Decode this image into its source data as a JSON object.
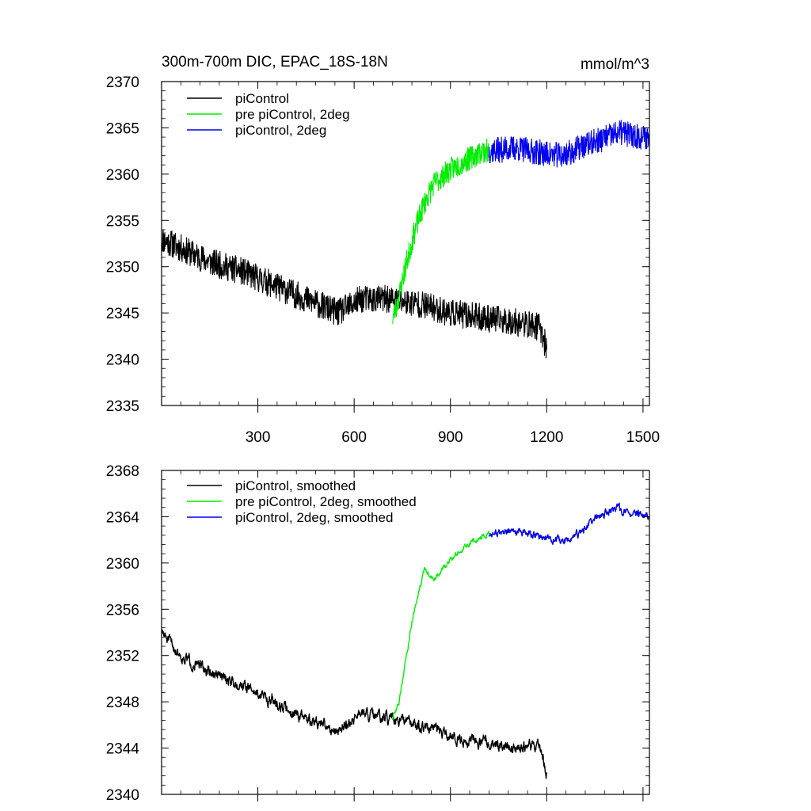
{
  "chart_data": [
    {
      "type": "line",
      "title": "300m-700m DIC, EPAC_18S-18N",
      "units": "mmol/m^3",
      "xlim": [
        0,
        1520
      ],
      "ylim": [
        2335,
        2370
      ],
      "xticks": [
        300,
        600,
        900,
        1200,
        1500
      ],
      "yticks": [
        2335,
        2340,
        2345,
        2350,
        2355,
        2360,
        2365,
        2370
      ],
      "show_x_tick_labels": true,
      "legend_position": "top-left",
      "series": [
        {
          "name": "piControl",
          "color": "#000000",
          "x_range": [
            0,
            1200
          ],
          "knots": [
            [
              0,
              2353
            ],
            [
              60,
              2352
            ],
            [
              150,
              2350.5
            ],
            [
              250,
              2349.5
            ],
            [
              350,
              2348
            ],
            [
              450,
              2346.5
            ],
            [
              550,
              2345
            ],
            [
              620,
              2346.5
            ],
            [
              700,
              2346.5
            ],
            [
              800,
              2346
            ],
            [
              900,
              2345
            ],
            [
              1000,
              2344.5
            ],
            [
              1100,
              2344
            ],
            [
              1180,
              2343.5
            ],
            [
              1200,
              2341
            ]
          ],
          "noise": 1.5,
          "seed": 11
        },
        {
          "name": "pre piControl, 2deg",
          "color": "#00ee00",
          "x_range": [
            720,
            1020
          ],
          "knots": [
            [
              720,
              2344.5
            ],
            [
              735,
              2346
            ],
            [
              760,
              2350
            ],
            [
              790,
              2354
            ],
            [
              820,
              2357
            ],
            [
              850,
              2359
            ],
            [
              900,
              2360.5
            ],
            [
              950,
              2361.5
            ],
            [
              1000,
              2362.5
            ],
            [
              1020,
              2362.5
            ]
          ],
          "noise": 1.3,
          "seed": 23
        },
        {
          "name": "piControl, 2deg",
          "color": "#0000ee",
          "x_range": [
            1020,
            1520
          ],
          "knots": [
            [
              1020,
              2362.5
            ],
            [
              1100,
              2362.8
            ],
            [
              1200,
              2362.2
            ],
            [
              1250,
              2362
            ],
            [
              1300,
              2362.8
            ],
            [
              1350,
              2363.5
            ],
            [
              1430,
              2364.5
            ],
            [
              1500,
              2364
            ],
            [
              1520,
              2364
            ]
          ],
          "noise": 1.4,
          "seed": 37
        }
      ]
    },
    {
      "type": "line",
      "title": "",
      "units": "",
      "xlim": [
        0,
        1520
      ],
      "ylim": [
        2340,
        2368
      ],
      "xticks": [
        300,
        600,
        900,
        1200,
        1500
      ],
      "yticks": [
        2340,
        2344,
        2348,
        2352,
        2356,
        2360,
        2364,
        2368
      ],
      "show_x_tick_labels": false,
      "legend_position": "top-left",
      "series": [
        {
          "name": "piControl, smoothed",
          "color": "#000000",
          "x_range": [
            0,
            1200
          ],
          "knots": [
            [
              0,
              2354
            ],
            [
              60,
              2352
            ],
            [
              150,
              2350.5
            ],
            [
              250,
              2349.5
            ],
            [
              350,
              2348
            ],
            [
              450,
              2346.5
            ],
            [
              550,
              2345.5
            ],
            [
              620,
              2347
            ],
            [
              700,
              2346.5
            ],
            [
              800,
              2346
            ],
            [
              900,
              2345
            ],
            [
              1000,
              2344.5
            ],
            [
              1100,
              2344
            ],
            [
              1180,
              2344.2
            ],
            [
              1200,
              2341.5
            ]
          ],
          "noise": 0.55,
          "seed": 51
        },
        {
          "name": "pre piControl, 2deg, smoothed",
          "color": "#00ee00",
          "x_range": [
            720,
            1020
          ],
          "knots": [
            [
              720,
              2346.5
            ],
            [
              740,
              2348
            ],
            [
              760,
              2351.5
            ],
            [
              780,
              2355
            ],
            [
              800,
              2357.5
            ],
            [
              820,
              2359.5
            ],
            [
              850,
              2358.5
            ],
            [
              900,
              2360.3
            ],
            [
              950,
              2361.5
            ],
            [
              1000,
              2362.4
            ],
            [
              1020,
              2362.5
            ]
          ],
          "noise": 0.25,
          "seed": 63
        },
        {
          "name": "piControl, 2deg, smoothed",
          "color": "#0000ee",
          "x_range": [
            1020,
            1520
          ],
          "knots": [
            [
              1020,
              2362.5
            ],
            [
              1100,
              2362.7
            ],
            [
              1200,
              2362.2
            ],
            [
              1250,
              2361.8
            ],
            [
              1300,
              2362.5
            ],
            [
              1350,
              2363.8
            ],
            [
              1420,
              2364.8
            ],
            [
              1450,
              2364.3
            ],
            [
              1520,
              2364
            ]
          ],
          "noise": 0.35,
          "seed": 77
        }
      ]
    }
  ]
}
